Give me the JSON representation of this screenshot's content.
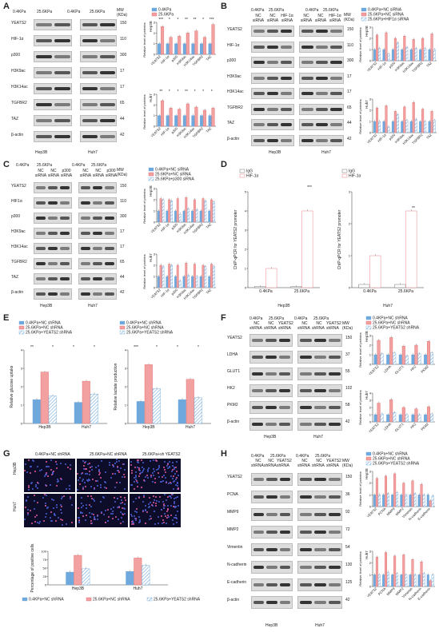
{
  "colors": {
    "blue": "#6fa8dc",
    "red": "#e06666",
    "pink": "#f2a0a0",
    "hatch": "#9fc5f8",
    "ink": "#222222",
    "iggBox": "#555555"
  },
  "A": {
    "letter": "A",
    "conds": [
      "0.4KPa",
      "25.6KPa",
      "0.4KPa",
      "25.6KPa"
    ],
    "mw_header": "MW\n(KDa)",
    "rows": [
      "YEATS2",
      "HIF-1α",
      "p300",
      "H3K9ac",
      "H3K14ac",
      "TGFBR2",
      "TAZ",
      "β-actin"
    ],
    "mw": [
      "150",
      "110",
      "300",
      "17",
      "17",
      "65",
      "44",
      "42"
    ],
    "cells": [
      "Hep3B",
      "Huh7"
    ],
    "legend": [
      "0.4KPa",
      "25.6KPa"
    ],
    "ylabel": "Relative level of proteins",
    "cats": [
      "YEATS2",
      "HIF-1α",
      "p300",
      "H3K9ac",
      "H3K14ac",
      "TGFBR2",
      "TAZ"
    ],
    "sig_hep": [
      "***",
      "*",
      "*",
      "**",
      "**",
      "*",
      "***"
    ],
    "sig_huh": [
      "**",
      "*",
      "*",
      "**",
      "*",
      "*",
      "*"
    ]
  },
  "B": {
    "letter": "B",
    "top": [
      "0.4KPa",
      "25.6KPa",
      "0.4KPa",
      "25.6KPa"
    ],
    "sub": [
      "NC siRNA",
      "NC siRNA",
      "HIF-1α siRNA",
      "NC siRNA",
      "NC siRNA",
      "HIF-1α siRNA"
    ],
    "mw_header": "MW\n(KDa)",
    "rows": [
      "YEATS2",
      "HIF-1α",
      "p300",
      "H3K9ac",
      "H3K14ac",
      "TGFBR2",
      "TAZ",
      "β-actin"
    ],
    "mw": [
      "150",
      "110",
      "300",
      "17",
      "17",
      "65",
      "44",
      "42"
    ],
    "cells": [
      "Hep3B",
      "Huh7"
    ],
    "legend": [
      "0.4KPa+NC siRNA",
      "25.6KPa+NC siRNA",
      "25.6KPa+HIF1α siRNA"
    ],
    "cats": [
      "YEATS2",
      "HIF-1α",
      "p300",
      "H3K9ac",
      "H3K14ac",
      "TGFBR2",
      "TAZ"
    ],
    "ylabel": "Relative level of proteins"
  },
  "C": {
    "letter": "C",
    "top": [
      "0.4KPa",
      "25.6KPa",
      "0.4KPa",
      "25.6KPa"
    ],
    "sub": [
      "NC siRNA",
      "NC siRNA",
      "p300 siRNA",
      "NC siRNA",
      "NC siRNA",
      "p300 siRNA"
    ],
    "mw_header": "MW\n(KDa)",
    "rows": [
      "YEATS2",
      "HIF1α",
      "p300",
      "H3K9ac",
      "H3K14ac",
      "TGFBR2",
      "TAZ",
      "β-actin"
    ],
    "mw": [
      "150",
      "110",
      "300",
      "17",
      "17",
      "65",
      "44",
      "42"
    ],
    "cells": [
      "Hep3B",
      "Huh7"
    ],
    "legend": [
      "0.4KPa+NC siRNA",
      "25.6KPa+NC siRNA",
      "25.6KPa+p300 siRNA"
    ],
    "cats": [
      "YEATS2",
      "HIF-1α",
      "p300",
      "H3K9ac",
      "H3K14ac",
      "TGFBR2",
      "TAZ"
    ],
    "ylabel": "Relative level of proteins"
  },
  "D": {
    "letter": "D",
    "legend": [
      "IgG",
      "HIF-1α"
    ],
    "ylabel_left": "ChIP-qPCR for YEATS2 promoter",
    "ylabel_right": "ChIP-qPCR for YEATS2 promoter",
    "cats": [
      "0.4KPa",
      "25.6KPa"
    ],
    "cell_left": "Hep3B",
    "cell_right": "Huh7",
    "sig_left": "***",
    "sig_right": "**"
  },
  "E": {
    "letter": "E",
    "legend": [
      "0.4KPa+NC shRNA",
      "25.6KPa+NC shRNA",
      "25.6KPa+YEATS2 shRNA"
    ],
    "ylabel_left": "Relative glucose uptake",
    "ylabel_right": "Relative lactate production",
    "cats": [
      "Hep3B",
      "Huh7"
    ],
    "sig_left": [
      "**",
      "*",
      "*",
      "*"
    ],
    "sig_right": [
      "***",
      "*",
      "*",
      "*"
    ]
  },
  "F": {
    "letter": "F",
    "top": [
      "0.4KPa",
      "25.6KPa",
      "0.4KPa",
      "25.6KPa"
    ],
    "sub": [
      "NC",
      "NC",
      "YEATS2",
      "NC",
      "NC",
      "YEATS2"
    ],
    "sub2": "shRNA",
    "mw_header": "MW\n(KDa)",
    "rows": [
      "YEATS2",
      "LDHA",
      "GLUT1",
      "HK2",
      "PKM2",
      "β-actin"
    ],
    "mw": [
      "150",
      "37",
      "55",
      "102",
      "58",
      "42"
    ],
    "cells": [
      "Hep3B",
      "Huh7"
    ],
    "legend": [
      "0.4KPa+NC shRNA",
      "25.6KPa+NC shRNA",
      "25.6KPa+YEATS2 shRNA"
    ],
    "cats": [
      "YEATS2",
      "LDHA",
      "GLUT1",
      "HK2",
      "PKM2"
    ],
    "ylabel": "Relative level of proteins"
  },
  "G": {
    "letter": "G",
    "cols": [
      "0.4KPa+NC shRNA",
      "25.6KPa+NC shRNA",
      "25.6KPa+sh YEATS2"
    ],
    "rows": [
      "Hep3B",
      "Huh7"
    ],
    "ylabel": "Percentage of positive cells",
    "cats": [
      "Hep3B",
      "Huh7"
    ],
    "legend": [
      "0.4KPa+NC shRNA",
      "25.6KPa+NC shRNA",
      "25.6KPa+YEATS2 shRNA"
    ]
  },
  "H": {
    "letter": "H",
    "top": [
      "0.4KPa",
      "25.6KPa",
      "0.4KPa",
      "25.6KPa"
    ],
    "sub": [
      "NC",
      "NC",
      "YEATS2",
      "NC",
      "NC",
      "YEATS2"
    ],
    "sub2": "shRNA",
    "mw_header": "MW\n(KDa)",
    "rows": [
      "YEATS2",
      "PCNA",
      "MMP9",
      "MMP2",
      "Vimentin",
      "N-cadherin",
      "E-cadherin",
      "β-actin"
    ],
    "mw": [
      "150",
      "36",
      "92",
      "72",
      "54",
      "130",
      "125",
      "42"
    ],
    "cells": [
      "Hep3B",
      "Huh7"
    ],
    "legend": [
      "0.4KPa+NC shRNA",
      "25.6KPa+NC shRNA",
      "25.6KPa+YEATS2 shRNA"
    ],
    "cats": [
      "YEATS2",
      "PCNA",
      "MMP9",
      "MMP2",
      "Vimentin",
      "N-cadherin",
      "E-cadherin"
    ],
    "ylabel": "Relative level of proteins"
  },
  "chart_data": [
    {
      "type": "bar",
      "panel": "A-Hep3B",
      "categories": [
        "YEATS2",
        "HIF-1α",
        "p300",
        "H3K9ac",
        "H3K14ac",
        "TGFBR2",
        "TAZ"
      ],
      "series": [
        {
          "name": "0.4KPa",
          "values": [
            1,
            1,
            1,
            1,
            1,
            1,
            1
          ]
        },
        {
          "name": "25.6KPa",
          "values": [
            2.6,
            1.6,
            1.7,
            2.0,
            2.2,
            1.6,
            2.8
          ]
        }
      ],
      "ylim": [
        0,
        3
      ]
    },
    {
      "type": "bar",
      "panel": "A-Huh7",
      "categories": [
        "YEATS2",
        "HIF-1α",
        "p300",
        "H3K9ac",
        "H3K14ac",
        "TGFBR2",
        "TAZ"
      ],
      "series": [
        {
          "name": "0.4KPa",
          "values": [
            1,
            1,
            1,
            1,
            1,
            1,
            1
          ]
        },
        {
          "name": "25.6KPa",
          "values": [
            2.4,
            1.7,
            1.6,
            2.1,
            1.8,
            1.5,
            1.7
          ]
        }
      ],
      "ylim": [
        0,
        3
      ]
    },
    {
      "type": "bar",
      "panel": "B-Hep3B",
      "categories": [
        "YEATS2",
        "HIF-1α",
        "p300",
        "H3K9ac",
        "H3K14ac",
        "TGFBR2",
        "TAZ"
      ],
      "series": [
        {
          "name": "0.4KPa+NC siRNA",
          "values": [
            1,
            1,
            1,
            1,
            1,
            1,
            1
          ]
        },
        {
          "name": "25.6KPa+NC siRNA",
          "values": [
            2.3,
            2.5,
            2.0,
            2.2,
            1.9,
            2.0,
            2.4
          ]
        },
        {
          "name": "25.6KPa+HIF1α siRNA",
          "values": [
            1.1,
            0.6,
            1.6,
            1.2,
            1.1,
            1.1,
            1.0
          ]
        }
      ],
      "ylim": [
        0,
        3
      ]
    },
    {
      "type": "bar",
      "panel": "B-Huh7",
      "categories": [
        "YEATS2",
        "HIF-1α",
        "p300",
        "H3K9ac",
        "H3K14ac",
        "TGFBR2",
        "TAZ"
      ],
      "series": [
        {
          "name": "0.4KPa+NC siRNA",
          "values": [
            1,
            1,
            1,
            1,
            1,
            1,
            1
          ]
        },
        {
          "name": "25.6KPa+NC siRNA",
          "values": [
            2.2,
            2.4,
            1.9,
            2.3,
            2.7,
            2.1,
            1.9
          ]
        },
        {
          "name": "25.6KPa+HIF1α siRNA",
          "values": [
            1.0,
            0.5,
            1.6,
            1.1,
            1.2,
            1.0,
            1.1
          ]
        }
      ],
      "ylim": [
        0,
        3
      ]
    },
    {
      "type": "bar",
      "panel": "C-Hep3B",
      "categories": [
        "YEATS2",
        "HIF-1α",
        "p300",
        "H3K9ac",
        "H3K14ac",
        "TGFBR2",
        "TAZ"
      ],
      "series": [
        {
          "name": "0.4KPa+NC siRNA",
          "values": [
            1,
            1,
            1,
            1,
            1,
            1,
            1
          ]
        },
        {
          "name": "25.6KPa+NC siRNA",
          "values": [
            2.1,
            2.0,
            2.1,
            2.2,
            2.0,
            2.1,
            2.0
          ]
        },
        {
          "name": "25.6KPa+p300 siRNA",
          "values": [
            2.0,
            1.9,
            0.7,
            1.2,
            1.1,
            1.9,
            1.8
          ]
        }
      ],
      "ylim": [
        0,
        3
      ]
    },
    {
      "type": "bar",
      "panel": "C-Huh7",
      "categories": [
        "YEATS2",
        "HIF-1α",
        "p300",
        "H3K9ac",
        "H3K14ac",
        "TGFBR2",
        "TAZ"
      ],
      "series": [
        {
          "name": "0.4KPa+NC siRNA",
          "values": [
            1,
            1,
            1,
            1,
            1,
            1,
            1
          ]
        },
        {
          "name": "25.6KPa+NC siRNA",
          "values": [
            2.0,
            2.1,
            2.0,
            2.2,
            2.1,
            2.0,
            2.1
          ]
        },
        {
          "name": "25.6KPa+p300 siRNA",
          "values": [
            1.9,
            2.0,
            0.6,
            1.1,
            1.0,
            1.9,
            1.9
          ]
        }
      ],
      "ylim": [
        0,
        3
      ]
    },
    {
      "type": "bar",
      "panel": "D-Hep3B",
      "categories": [
        "0.4KPa",
        "25.6KPa"
      ],
      "series": [
        {
          "name": "IgG",
          "values": [
            0.05,
            0.05
          ]
        },
        {
          "name": "HIF-1α",
          "values": [
            1.0,
            4.0
          ]
        }
      ],
      "ylim": [
        0,
        5
      ]
    },
    {
      "type": "bar",
      "panel": "D-Huh7",
      "categories": [
        "0.4KPa",
        "25.6KPa"
      ],
      "series": [
        {
          "name": "IgG",
          "values": [
            0.1,
            0.1
          ]
        },
        {
          "name": "HIF-1α",
          "values": [
            1.0,
            2.4
          ]
        }
      ],
      "ylim": [
        0,
        3
      ]
    },
    {
      "type": "bar",
      "panel": "E-glucose",
      "categories": [
        "Hep3B",
        "Huh7"
      ],
      "series": [
        {
          "name": "0.4KPa+NC shRNA",
          "values": [
            1.3,
            1.15
          ]
        },
        {
          "name": "25.6KPa+NC shRNA",
          "values": [
            2.8,
            2.3
          ]
        },
        {
          "name": "25.6KPa+YEATS2 shRNA",
          "values": [
            1.5,
            1.6
          ]
        }
      ],
      "ylim": [
        0,
        4
      ]
    },
    {
      "type": "bar",
      "panel": "E-lactate",
      "categories": [
        "Hep3B",
        "Huh7"
      ],
      "series": [
        {
          "name": "0.4KPa+NC shRNA",
          "values": [
            1.2,
            1.3
          ]
        },
        {
          "name": "25.6KPa+NC shRNA",
          "values": [
            3.2,
            2.4
          ]
        },
        {
          "name": "25.6KPa+YEATS2 shRNA",
          "values": [
            1.9,
            1.4
          ]
        }
      ],
      "ylim": [
        0,
        4
      ]
    },
    {
      "type": "bar",
      "panel": "F-Hep3B",
      "categories": [
        "YEATS2",
        "LDHA",
        "GLUT1",
        "HK2",
        "PKM2"
      ],
      "series": [
        {
          "name": "0.4KPa+NC shRNA",
          "values": [
            1,
            1,
            1,
            1,
            1
          ]
        },
        {
          "name": "25.6KPa+NC shRNA",
          "values": [
            2.5,
            2.8,
            1.9,
            2.0,
            2.4
          ]
        },
        {
          "name": "25.6KPa+YEATS2 shRNA",
          "values": [
            1.1,
            1.2,
            0.9,
            1.1,
            1.2
          ]
        }
      ],
      "ylim": [
        0,
        3
      ]
    },
    {
      "type": "bar",
      "panel": "F-Huh7",
      "categories": [
        "YEATS2",
        "LDHA",
        "GLUT1",
        "HK2",
        "PKM2"
      ],
      "series": [
        {
          "name": "0.4KPa+NC shRNA",
          "values": [
            1,
            1,
            1,
            1,
            1
          ]
        },
        {
          "name": "25.6KPa+NC shRNA",
          "values": [
            2.6,
            3.1,
            2.0,
            1.8,
            2.1
          ]
        },
        {
          "name": "25.6KPa+YEATS2 shRNA",
          "values": [
            1.1,
            1.3,
            1.0,
            1.0,
            1.1
          ]
        }
      ],
      "ylim": [
        0,
        4
      ]
    },
    {
      "type": "bar",
      "panel": "G",
      "categories": [
        "Hep3B",
        "Huh7"
      ],
      "series": [
        {
          "name": "0.4KPa+NC shRNA",
          "values": [
            38,
            40
          ]
        },
        {
          "name": "25.6KPa+NC shRNA",
          "values": [
            88,
            80
          ]
        },
        {
          "name": "25.6KPa+YEATS2 shRNA",
          "values": [
            48,
            58
          ]
        }
      ],
      "ylim": [
        0,
        100
      ]
    },
    {
      "type": "bar",
      "panel": "H-Hep3B",
      "categories": [
        "YEATS2",
        "PCNA",
        "MMP9",
        "MMP2",
        "Vimentin",
        "N-cadherin",
        "E-cadherin"
      ],
      "series": [
        {
          "name": "0.4KPa+NC shRNA",
          "values": [
            1,
            1,
            1,
            1,
            1,
            1,
            1
          ]
        },
        {
          "name": "25.6KPa+NC shRNA",
          "values": [
            2.4,
            2.6,
            2.8,
            2.0,
            2.2,
            1.9,
            0.5
          ]
        },
        {
          "name": "25.6KPa+YEATS2 shRNA",
          "values": [
            1.0,
            1.1,
            1.2,
            1.0,
            1.1,
            1.0,
            0.9
          ]
        }
      ],
      "ylim": [
        0,
        3
      ]
    },
    {
      "type": "bar",
      "panel": "H-Huh7",
      "categories": [
        "YEATS2",
        "PCNA",
        "MMP9",
        "MMP2",
        "Vimentin",
        "N-cadherin",
        "E-cadherin"
      ],
      "series": [
        {
          "name": "0.4KPa+NC shRNA",
          "values": [
            1,
            1,
            1,
            1,
            1,
            1,
            1
          ]
        },
        {
          "name": "25.6KPa+NC shRNA",
          "values": [
            2.5,
            2.9,
            2.6,
            2.7,
            2.3,
            2.1,
            0.5
          ]
        },
        {
          "name": "25.6KPa+YEATS2 shRNA",
          "values": [
            1.0,
            1.2,
            1.1,
            1.0,
            1.0,
            1.1,
            1.0
          ]
        }
      ],
      "ylim": [
        0,
        3
      ]
    }
  ]
}
